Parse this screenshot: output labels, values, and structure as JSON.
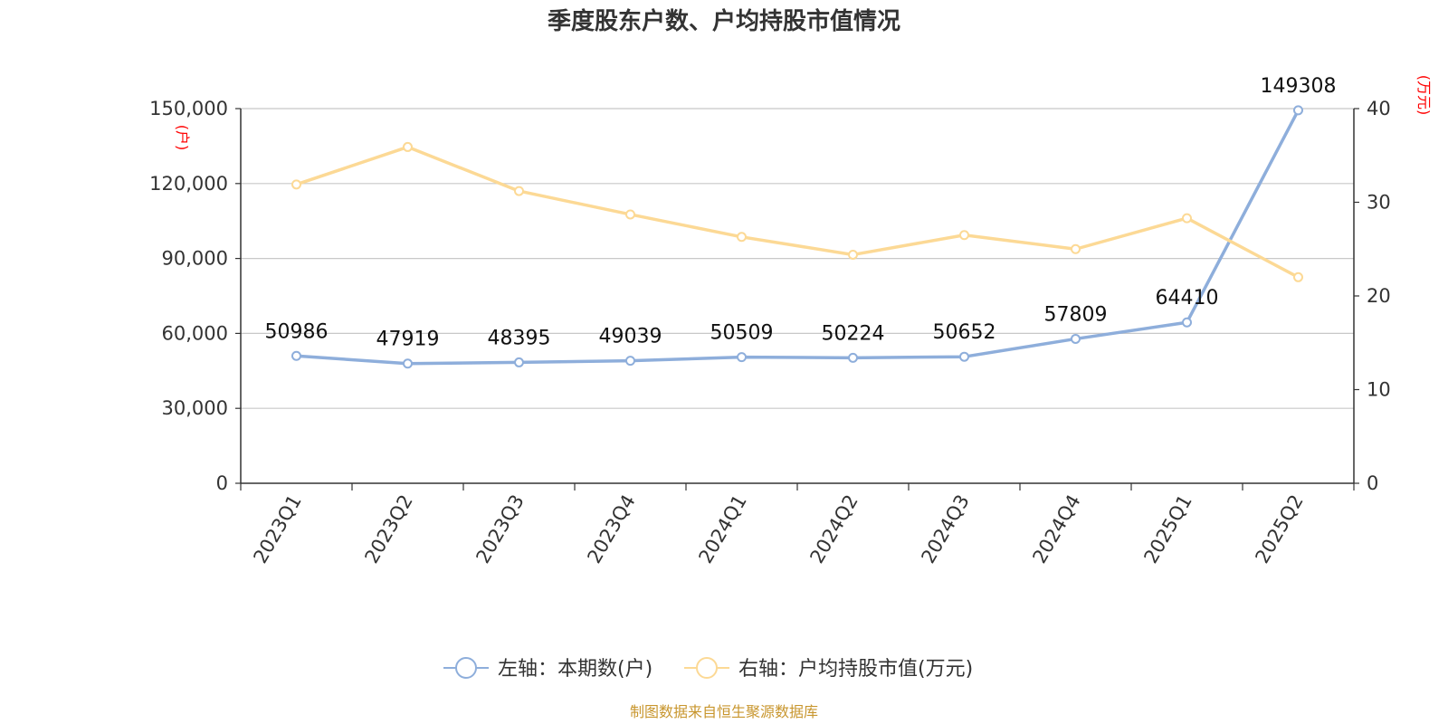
{
  "chart_data": {
    "type": "line",
    "title": "季度股东户数、户均持股市值情况",
    "categories": [
      "2023Q1",
      "2023Q2",
      "2023Q3",
      "2023Q4",
      "2024Q1",
      "2024Q2",
      "2024Q3",
      "2024Q4",
      "2025Q1",
      "2025Q2"
    ],
    "left_axis": {
      "unit": "(户)",
      "ylim": [
        0,
        150000
      ],
      "ticks": [
        0,
        30000,
        60000,
        90000,
        120000,
        150000
      ],
      "tick_labels": [
        "0",
        "30,000",
        "60,000",
        "90,000",
        "120,000",
        "150,000"
      ]
    },
    "right_axis": {
      "unit": "(万元)",
      "ylim": [
        0,
        40
      ],
      "ticks": [
        0,
        10,
        20,
        30,
        40
      ],
      "tick_labels": [
        "0",
        "10",
        "20",
        "30",
        "40"
      ]
    },
    "series": [
      {
        "name": "左轴：本期数(户)",
        "axis": "left",
        "color": "#8eaedb",
        "values": [
          50986,
          47919,
          48395,
          49039,
          50509,
          50224,
          50652,
          57809,
          64410,
          149308
        ],
        "labels": [
          "50986",
          "47919",
          "48395",
          "49039",
          "50509",
          "50224",
          "50652",
          "57809",
          "64410",
          "149308"
        ]
      },
      {
        "name": "右轴：户均持股市值(万元)",
        "axis": "right",
        "color": "#fcd995",
        "values": [
          31.9,
          35.9,
          31.2,
          28.7,
          26.3,
          24.4,
          26.5,
          25.0,
          28.3,
          22.0
        ]
      }
    ],
    "grid": true,
    "legend_position": "bottom-center",
    "source": "制图数据来自恒生聚源数据库"
  }
}
